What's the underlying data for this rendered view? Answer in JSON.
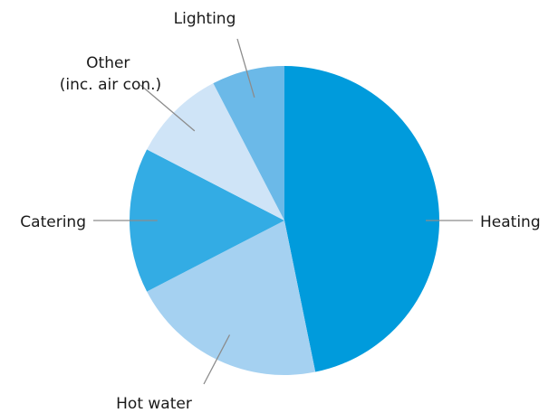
{
  "chart_data": {
    "type": "pie",
    "title": "",
    "slices": [
      {
        "label": "Heating",
        "value": 46.8,
        "color": "#009bdc"
      },
      {
        "label": "Hot water",
        "value": 20.6,
        "color": "#a5d1f1"
      },
      {
        "label": "Catering",
        "value": 15.2,
        "color": "#33ace4"
      },
      {
        "label": "Other (inc. air con.)",
        "value": 9.8,
        "color": "#cfe4f7"
      },
      {
        "label": "Lighting",
        "value": 7.6,
        "color": "#6bb9e8"
      }
    ],
    "start_angle": "12 o'clock",
    "direction": "clockwise"
  }
}
